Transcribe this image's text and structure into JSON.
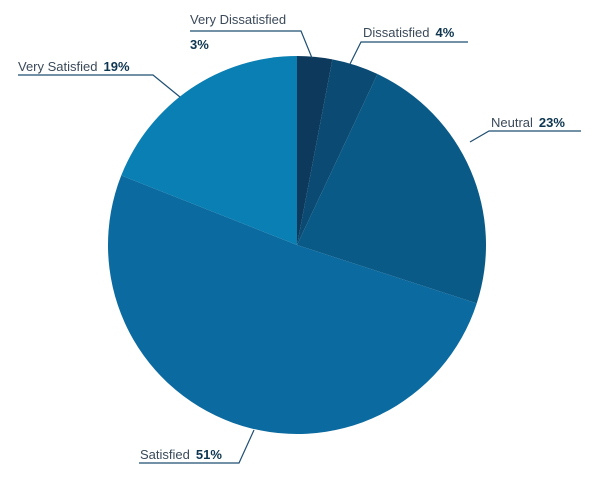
{
  "chart_data": {
    "type": "pie",
    "slices": [
      {
        "label": "Very Dissatisfied",
        "value": 3,
        "display": "3%",
        "color": "#0d3a5c"
      },
      {
        "label": "Dissatisfied",
        "value": 4,
        "display": "4%",
        "color": "#0b4a73"
      },
      {
        "label": "Neutral",
        "value": 23,
        "display": "23%",
        "color": "#0a5a87"
      },
      {
        "label": "Satisfied",
        "value": 51,
        "display": "51%",
        "color": "#0b6a9f"
      },
      {
        "label": "Very Satisfied",
        "value": 19,
        "display": "19%",
        "color": "#0a7fb3"
      }
    ],
    "start_angle_deg": 0,
    "direction": "clockwise"
  }
}
